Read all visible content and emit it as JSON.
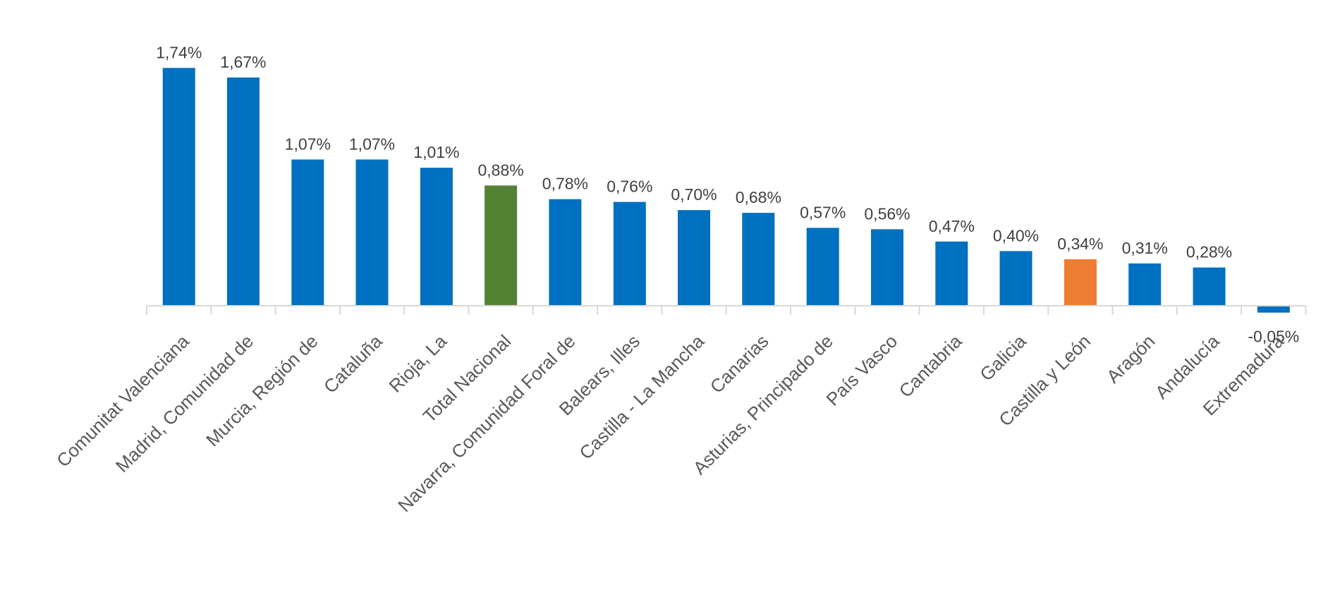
{
  "chart_data": {
    "type": "bar",
    "categories": [
      "Comunitat Valenciana",
      "Madrid, Comunidad de",
      "Murcia, Región de",
      "Cataluña",
      "Rioja, La",
      "Total Nacional",
      "Navarra, Comunidad Foral de",
      "Balears, Illes",
      "Castilla - La Mancha",
      "Canarias",
      "Asturias, Principado de",
      "País Vasco",
      "Cantabria",
      "Galicia",
      "Castilla y León",
      "Aragón",
      "Andalucía",
      "Extremadura"
    ],
    "values": [
      1.74,
      1.67,
      1.07,
      1.07,
      1.01,
      0.88,
      0.78,
      0.76,
      0.7,
      0.68,
      0.57,
      0.56,
      0.47,
      0.4,
      0.34,
      0.31,
      0.28,
      -0.05
    ],
    "data_labels": [
      "1,74%",
      "1,67%",
      "1,07%",
      "1,07%",
      "1,01%",
      "0,88%",
      "0,78%",
      "0,76%",
      "0,70%",
      "0,68%",
      "0,57%",
      "0,56%",
      "0,47%",
      "0,40%",
      "0,34%",
      "0,31%",
      "0,28%",
      "-0,05%"
    ],
    "bar_colors": [
      "#0070C0",
      "#0070C0",
      "#0070C0",
      "#0070C0",
      "#0070C0",
      "#548235",
      "#0070C0",
      "#0070C0",
      "#0070C0",
      "#0070C0",
      "#0070C0",
      "#0070C0",
      "#0070C0",
      "#0070C0",
      "#ED7D31",
      "#0070C0",
      "#0070C0",
      "#0070C0"
    ],
    "ylim": [
      -0.05,
      1.8
    ],
    "grid": false,
    "legend": "none",
    "title": "",
    "xlabel": "",
    "ylabel": ""
  },
  "colors": {
    "default_bar": "#0070C0",
    "national_bar": "#548235",
    "highlight_bar": "#ED7D31",
    "axis": "#D9D9D9",
    "data_label_text": "#404040",
    "category_label_text": "#595959"
  }
}
